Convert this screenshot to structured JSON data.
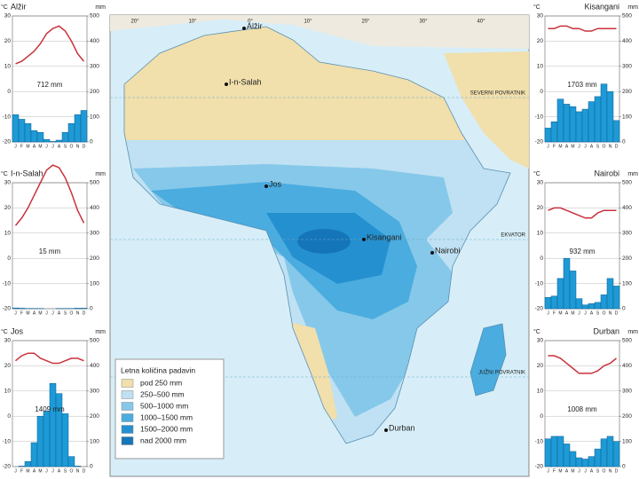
{
  "chart_data": [
    {
      "type": "bar",
      "title": "Alžir",
      "annotation": "712 mm",
      "ylabel": "°C",
      "y2label": "mm",
      "categories": [
        "J",
        "F",
        "M",
        "A",
        "M",
        "J",
        "J",
        "A",
        "S",
        "O",
        "N",
        "D"
      ],
      "series": [
        {
          "color": "#1e9ad6",
          "axis": "y2",
          "values": [
            108,
            90,
            73,
            45,
            38,
            10,
            2,
            7,
            38,
            73,
            108,
            125
          ]
        },
        {
          "color": "#c8323c",
          "values": [
            11,
            12,
            14,
            16,
            19,
            23,
            25,
            26,
            24,
            20,
            15,
            12
          ]
        }
      ],
      "ylim": [
        -20,
        30
      ],
      "yticks": [
        -20,
        -10,
        0,
        10,
        20,
        30
      ],
      "y2lim": [
        0,
        500
      ],
      "y2ticks": [
        0,
        100,
        200,
        300,
        400,
        500
      ]
    },
    {
      "type": "bar",
      "title": "I-n-Salah",
      "annotation": "15 mm",
      "ylabel": "°C",
      "y2label": "mm",
      "categories": [
        "J",
        "F",
        "M",
        "A",
        "M",
        "J",
        "J",
        "A",
        "S",
        "O",
        "N",
        "D"
      ],
      "series": [
        {
          "color": "#1e9ad6",
          "axis": "y2",
          "values": [
            3,
            2,
            1,
            1,
            1,
            0,
            0,
            1,
            1,
            1,
            2,
            2
          ]
        },
        {
          "color": "#c8323c",
          "values": [
            13,
            16,
            20,
            25,
            30,
            35,
            37,
            36,
            32,
            26,
            19,
            14
          ]
        }
      ],
      "ylim": [
        -20,
        30
      ],
      "yticks": [
        -20,
        -10,
        0,
        10,
        20,
        30
      ],
      "y2lim": [
        0,
        500
      ],
      "y2ticks": [
        0,
        100,
        200,
        300,
        400,
        500
      ]
    },
    {
      "type": "bar",
      "title": "Jos",
      "annotation": "1409 mm",
      "ylabel": "°C",
      "y2label": "mm",
      "categories": [
        "J",
        "F",
        "M",
        "A",
        "M",
        "J",
        "J",
        "A",
        "S",
        "O",
        "N",
        "D"
      ],
      "series": [
        {
          "color": "#1e9ad6",
          "axis": "y2",
          "values": [
            0,
            2,
            20,
            95,
            200,
            220,
            330,
            290,
            210,
            40,
            2,
            0
          ]
        },
        {
          "color": "#c8323c",
          "values": [
            22,
            24,
            25,
            25,
            23,
            22,
            21,
            21,
            22,
            23,
            23,
            22
          ]
        }
      ],
      "ylim": [
        -20,
        30
      ],
      "yticks": [
        -20,
        -10,
        0,
        10,
        20,
        30
      ],
      "y2lim": [
        0,
        500
      ],
      "y2ticks": [
        0,
        100,
        200,
        300,
        400,
        500
      ]
    },
    {
      "type": "bar",
      "title": "Kisangani",
      "annotation": "1703 mm",
      "ylabel": "°C",
      "y2label": "mm",
      "categories": [
        "J",
        "F",
        "M",
        "A",
        "M",
        "J",
        "J",
        "A",
        "S",
        "O",
        "N",
        "D"
      ],
      "series": [
        {
          "color": "#1e9ad6",
          "axis": "y2",
          "values": [
            55,
            80,
            170,
            150,
            140,
            120,
            130,
            160,
            180,
            230,
            200,
            85
          ]
        },
        {
          "color": "#c8323c",
          "values": [
            25,
            25,
            26,
            26,
            25,
            25,
            24,
            24,
            25,
            25,
            25,
            25
          ]
        }
      ],
      "ylim": [
        -20,
        30
      ],
      "yticks": [
        -20,
        -10,
        0,
        10,
        20,
        30
      ],
      "y2lim": [
        0,
        500
      ],
      "y2ticks": [
        0,
        100,
        200,
        300,
        400,
        500
      ]
    },
    {
      "type": "bar",
      "title": "Nairobi",
      "annotation": "932 mm",
      "ylabel": "°C",
      "y2label": "mm",
      "categories": [
        "J",
        "F",
        "M",
        "A",
        "M",
        "J",
        "J",
        "A",
        "S",
        "O",
        "N",
        "D"
      ],
      "series": [
        {
          "color": "#1e9ad6",
          "axis": "y2",
          "values": [
            45,
            50,
            120,
            200,
            150,
            40,
            15,
            20,
            25,
            55,
            120,
            90
          ]
        },
        {
          "color": "#c8323c",
          "values": [
            19,
            20,
            20,
            19,
            18,
            17,
            16,
            16,
            18,
            19,
            19,
            19
          ]
        }
      ],
      "ylim": [
        -20,
        30
      ],
      "yticks": [
        -20,
        -10,
        0,
        10,
        20,
        30
      ],
      "y2lim": [
        0,
        500
      ],
      "y2ticks": [
        0,
        100,
        200,
        300,
        400,
        500
      ]
    },
    {
      "type": "bar",
      "title": "Durban",
      "annotation": "1008 mm",
      "ylabel": "°C",
      "y2label": "mm",
      "categories": [
        "J",
        "F",
        "M",
        "A",
        "M",
        "J",
        "J",
        "A",
        "S",
        "O",
        "N",
        "D"
      ],
      "series": [
        {
          "color": "#1e9ad6",
          "axis": "y2",
          "values": [
            110,
            120,
            120,
            90,
            60,
            35,
            30,
            40,
            70,
            110,
            120,
            100
          ]
        },
        {
          "color": "#c8323c",
          "values": [
            24,
            24,
            23,
            21,
            19,
            17,
            17,
            17,
            18,
            20,
            21,
            23
          ]
        }
      ],
      "ylim": [
        -20,
        30
      ],
      "yticks": [
        -20,
        -10,
        0,
        10,
        20,
        30
      ],
      "y2lim": [
        0,
        500
      ],
      "y2ticks": [
        0,
        100,
        200,
        300,
        400,
        500
      ]
    }
  ],
  "map": {
    "cities": [
      "Alžir",
      "I-n-Salah",
      "Jos",
      "Kisangani",
      "Nairobi",
      "Durban"
    ],
    "lines": [
      "SEVERNI POVRATNIK",
      "EKVATOR",
      "JUŽNI POVRATNIK"
    ],
    "longitudes": [
      "20°",
      "10°",
      "0°",
      "10°",
      "20°",
      "30°",
      "40°"
    ],
    "legend": {
      "title": "Letna količina padavin",
      "items": [
        {
          "label": "pod 250 mm",
          "color": "#f1dfac"
        },
        {
          "label": "250–500 mm",
          "color": "#bfe1f3"
        },
        {
          "label": "500–1000 mm",
          "color": "#86c8ea"
        },
        {
          "label": "1000–1500 mm",
          "color": "#4aacdf"
        },
        {
          "label": "1500–2000 mm",
          "color": "#2590cf"
        },
        {
          "label": "nad 2000 mm",
          "color": "#1575b9"
        }
      ]
    }
  }
}
